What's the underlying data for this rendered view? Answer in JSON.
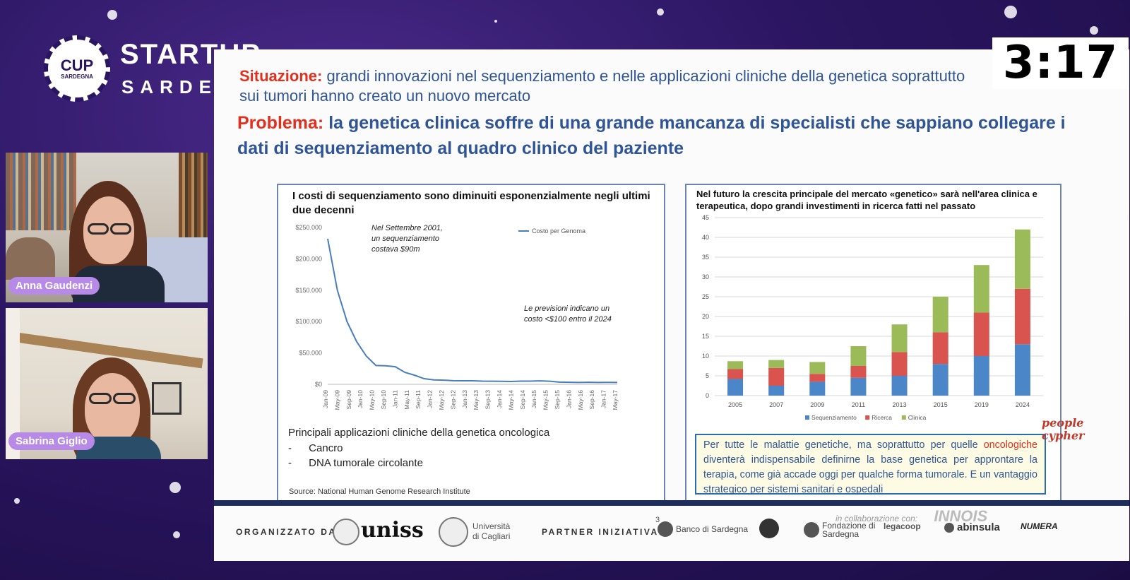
{
  "event": {
    "logo_circle_text": "CUP",
    "logo_circle_sub": "SARDEGNA",
    "brand": "STARTUP",
    "brand_sub": "SARDEGNA"
  },
  "timer": "3:17",
  "participants": [
    {
      "name": "Anna Gaudenzi"
    },
    {
      "name": "Sabrina Giglio"
    }
  ],
  "slide": {
    "situation_label": "Situazione:",
    "situation_text": " grandi innovazioni nel sequenziamento e nelle  applicazioni cliniche della genetica soprattutto sui tumori  hanno creato un nuovo mercato",
    "problem_label": "Problema:",
    "problem_text": " la genetica clinica soffre di una grande mancanza di specialisti che sappiano collegare i dati di sequenziamento al quadro clinico del paziente",
    "left_panel": {
      "title": "I costi di sequenziamento sono diminuiti esponenzialmente negli ultimi due decenni",
      "annotation_1": [
        "Nel Settembre 2001,",
        "un sequenziamento",
        "costava $90m"
      ],
      "annotation_2": [
        "Le previsioni indicano un",
        "costo <$100 entro il 2024"
      ],
      "applications_title": "Principali applicazioni cliniche della genetica oncologica",
      "applications": [
        "Cancro",
        "DNA tumorale circolante"
      ],
      "bullet": "-",
      "source": "Source: National Human Genome Research Institute"
    },
    "right_panel": {
      "title": "Nel futuro la crescita principale del mercato «genetico» sarà nell'area clinica e terapeutica, dopo grandi investimenti in ricerca fatti nel passato",
      "callout_pre": "Per tutte le malattie genetiche, ma soprattutto per quelle ",
      "callout_red": "oncologiche",
      "callout_post": " diventerà indispensabile definirne la base genetica per approntare la terapia, come già accade oggi per qualche forma tumorale. E un vantaggio strategico per sistemi sanitari e ospedali"
    },
    "brand_mark": "people cypher",
    "page_number": "3",
    "footer": {
      "organized_by": "ORGANIZZATO DA:",
      "uniss": "uniss",
      "cagliari_line1": "Università",
      "cagliari_line2": "di Cagliari",
      "partner_label": "PARTNER INIZIATIVA:",
      "partners": [
        "Banco di Sardegna",
        "Fondazione di Sardegna",
        "legacoop",
        "abinsula",
        "NUMERA"
      ],
      "collab": "in collaborazione con:",
      "innois": "INNOIS"
    }
  },
  "chart_data": [
    {
      "type": "line",
      "title": "I costi di sequenziamento sono diminuiti esponenzialmente negli ultimi due decenni",
      "series": [
        {
          "name": "Costo per Genoma",
          "color": "#4a7ebb",
          "values": [
            232000,
            150000,
            100000,
            68000,
            45000,
            30000,
            29500,
            28000,
            19000,
            14500,
            9000,
            7000,
            6600,
            5800,
            5700,
            5600,
            5000,
            4900,
            4800,
            4500,
            5100,
            5000,
            5500,
            4900,
            3500,
            3300,
            3000,
            3200,
            3000,
            3100,
            3000
          ]
        }
      ],
      "x_ticks": [
        "Jan-09",
        "May-09",
        "Sep-09",
        "Jan-10",
        "May-10",
        "Sep-10",
        "Jan-11",
        "May-11",
        "Sep-11",
        "Jan-12",
        "May-12",
        "Sep-12",
        "Jan-13",
        "May-13",
        "Sep-13",
        "Jan-14",
        "May-14",
        "Sep-14",
        "Jan-15",
        "May-15",
        "Sep-15",
        "Jan-16",
        "May-16",
        "Sep-16",
        "Jan-17",
        "May-17"
      ],
      "y_ticks": [
        "$250.000",
        "$200.000",
        "$150.000",
        "$100.000",
        "$50.000",
        "$0"
      ],
      "ylim": [
        0,
        250000
      ],
      "grid": false,
      "legend": "top-right"
    },
    {
      "type": "bar",
      "stacked": true,
      "categories": [
        "2005",
        "2007",
        "2009",
        "2011",
        "2013",
        "2015",
        "2019",
        "2024"
      ],
      "series": [
        {
          "name": "Sequenziamento",
          "color": "#4a86c8",
          "values": [
            4.2,
            2.5,
            3.5,
            4.5,
            5,
            8,
            10,
            13
          ]
        },
        {
          "name": "Ricerca",
          "color": "#d9534f",
          "values": [
            2.5,
            4.5,
            2,
            3,
            6,
            8,
            11,
            14
          ]
        },
        {
          "name": "Clinica",
          "color": "#9bbb59",
          "values": [
            2,
            2,
            3,
            5,
            7,
            9,
            12,
            15
          ]
        }
      ],
      "y_ticks": [
        "0",
        "5",
        "10",
        "15",
        "20",
        "25",
        "30",
        "35",
        "40",
        "45"
      ],
      "ylim": [
        0,
        45
      ],
      "grid": true,
      "legend": "bottom"
    }
  ]
}
